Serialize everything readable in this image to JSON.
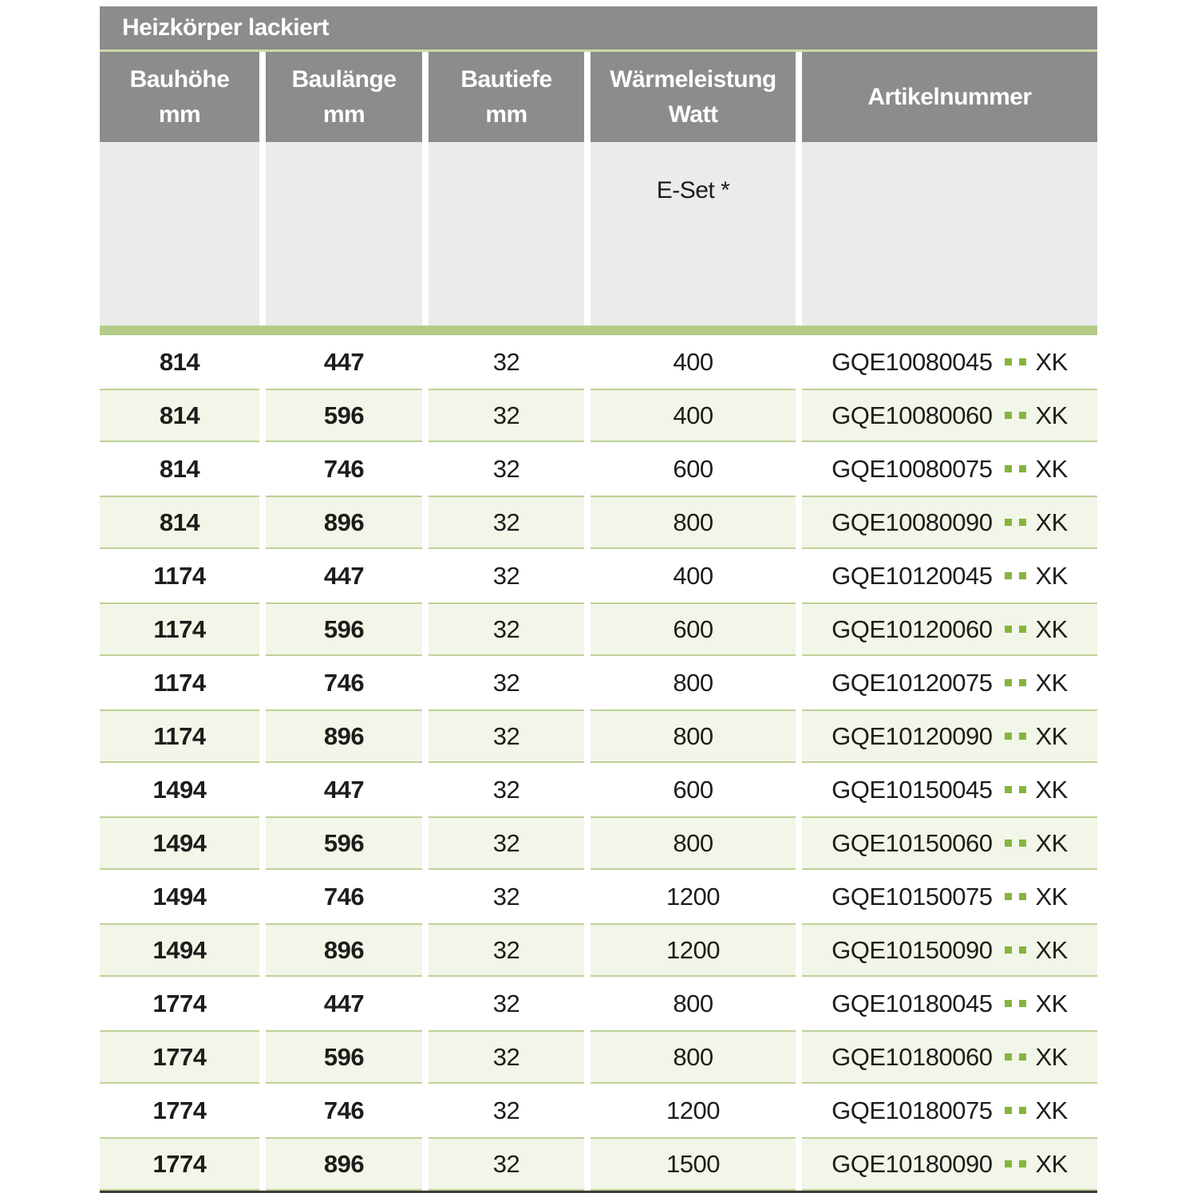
{
  "table": {
    "title": "Heizkörper lackiert",
    "columns": [
      {
        "line1": "Bauhöhe",
        "line2": "mm"
      },
      {
        "line1": "Baulänge",
        "line2": "mm"
      },
      {
        "line1": "Bautiefe",
        "line2": "mm"
      },
      {
        "line1": "Wärmeleistung",
        "line2": "Watt"
      },
      {
        "line1": "Artikelnummer",
        "line2": ""
      }
    ],
    "subheader": {
      "eset_label": "E-Set *"
    },
    "rows": [
      {
        "bauhoehe_mm": "814",
        "baulaenge_mm": "447",
        "bautiefe_mm": "32",
        "watt": "400",
        "artikelnummer": "GQE10080045",
        "artikel_suffix": "XK"
      },
      {
        "bauhoehe_mm": "814",
        "baulaenge_mm": "596",
        "bautiefe_mm": "32",
        "watt": "400",
        "artikelnummer": "GQE10080060",
        "artikel_suffix": "XK"
      },
      {
        "bauhoehe_mm": "814",
        "baulaenge_mm": "746",
        "bautiefe_mm": "32",
        "watt": "600",
        "artikelnummer": "GQE10080075",
        "artikel_suffix": "XK"
      },
      {
        "bauhoehe_mm": "814",
        "baulaenge_mm": "896",
        "bautiefe_mm": "32",
        "watt": "800",
        "artikelnummer": "GQE10080090",
        "artikel_suffix": "XK"
      },
      {
        "bauhoehe_mm": "1174",
        "baulaenge_mm": "447",
        "bautiefe_mm": "32",
        "watt": "400",
        "artikelnummer": "GQE10120045",
        "artikel_suffix": "XK"
      },
      {
        "bauhoehe_mm": "1174",
        "baulaenge_mm": "596",
        "bautiefe_mm": "32",
        "watt": "600",
        "artikelnummer": "GQE10120060",
        "artikel_suffix": "XK"
      },
      {
        "bauhoehe_mm": "1174",
        "baulaenge_mm": "746",
        "bautiefe_mm": "32",
        "watt": "800",
        "artikelnummer": "GQE10120075",
        "artikel_suffix": "XK"
      },
      {
        "bauhoehe_mm": "1174",
        "baulaenge_mm": "896",
        "bautiefe_mm": "32",
        "watt": "800",
        "artikelnummer": "GQE10120090",
        "artikel_suffix": "XK"
      },
      {
        "bauhoehe_mm": "1494",
        "baulaenge_mm": "447",
        "bautiefe_mm": "32",
        "watt": "600",
        "artikelnummer": "GQE10150045",
        "artikel_suffix": "XK"
      },
      {
        "bauhoehe_mm": "1494",
        "baulaenge_mm": "596",
        "bautiefe_mm": "32",
        "watt": "800",
        "artikelnummer": "GQE10150060",
        "artikel_suffix": "XK"
      },
      {
        "bauhoehe_mm": "1494",
        "baulaenge_mm": "746",
        "bautiefe_mm": "32",
        "watt": "1200",
        "artikelnummer": "GQE10150075",
        "artikel_suffix": "XK"
      },
      {
        "bauhoehe_mm": "1494",
        "baulaenge_mm": "896",
        "bautiefe_mm": "32",
        "watt": "1200",
        "artikelnummer": "GQE10150090",
        "artikel_suffix": "XK"
      },
      {
        "bauhoehe_mm": "1774",
        "baulaenge_mm": "447",
        "bautiefe_mm": "32",
        "watt": "800",
        "artikelnummer": "GQE10180045",
        "artikel_suffix": "XK"
      },
      {
        "bauhoehe_mm": "1774",
        "baulaenge_mm": "596",
        "bautiefe_mm": "32",
        "watt": "800",
        "artikelnummer": "GQE10180060",
        "artikel_suffix": "XK"
      },
      {
        "bauhoehe_mm": "1774",
        "baulaenge_mm": "746",
        "bautiefe_mm": "32",
        "watt": "1200",
        "artikelnummer": "GQE10180075",
        "artikel_suffix": "XK"
      },
      {
        "bauhoehe_mm": "1774",
        "baulaenge_mm": "896",
        "bautiefe_mm": "32",
        "watt": "1500",
        "artikelnummer": "GQE10180090",
        "artikel_suffix": "XK"
      }
    ]
  },
  "colors": {
    "header_gray": "#8c8c8c",
    "header_text": "#ffffff",
    "subheader_gray": "#ebebeb",
    "green_bar": "#b3cb87",
    "green_hairline": "#c9dba4",
    "row_green_bg": "#f2f6e8",
    "row_green_border": "#bdd196",
    "dot_green": "#85b43e",
    "text_dark": "#1d1d1b",
    "bottom_line": "#3c3c3b"
  }
}
